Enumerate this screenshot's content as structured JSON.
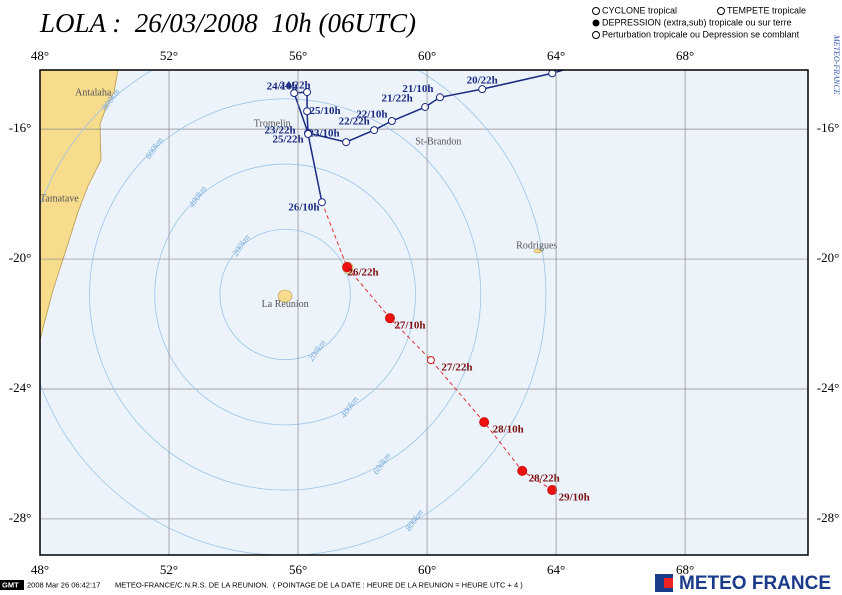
{
  "header": {
    "title": "LOLA :  26/03/2008  10h (06UTC)"
  },
  "legend": [
    "CYCLONE tropical",
    "TEMPETE tropicale",
    "DEPRESSION (extra,sub) tropicale ou sur terre",
    "Perturbation tropicale ou Depression se comblant"
  ],
  "side_text": "METEO-FRANCE",
  "map": {
    "lon_range": [
      48,
      71.81
    ],
    "lat_range": [
      -14.18,
      -29.11
    ],
    "lon_ticks": [
      {
        "value": 48,
        "label": "48°"
      },
      {
        "value": 52,
        "label": "52°"
      },
      {
        "value": 56,
        "label": "56°"
      },
      {
        "value": 60,
        "label": "60°"
      },
      {
        "value": 64,
        "label": "64°"
      },
      {
        "value": 68,
        "label": "68°"
      }
    ],
    "lat_ticks": [
      {
        "value": -16,
        "label": "-16°"
      },
      {
        "value": -20,
        "label": "-20°"
      },
      {
        "value": -24,
        "label": "-24°"
      },
      {
        "value": -28,
        "label": "-28°"
      }
    ],
    "ring_center": {
      "lon": 55.6,
      "lat": -21.09
    },
    "rings": [
      {
        "km": 200,
        "label": "200km"
      },
      {
        "km": 400,
        "label": "400km"
      },
      {
        "km": 600,
        "label": "600km"
      },
      {
        "km": 800,
        "label": "800km"
      }
    ],
    "places": [
      {
        "name": "Antalaha",
        "lon": 49.65,
        "lat": -14.9
      },
      {
        "name": "Tamatave",
        "lon": 48.6,
        "lat": -18.15
      },
      {
        "name": "Tromelin",
        "lon": 55.2,
        "lat": -15.85
      },
      {
        "name": "St-Brandon",
        "lon": 60.35,
        "lat": -16.4
      },
      {
        "name": "Rodrigues",
        "lon": 63.4,
        "lat": -19.6
      },
      {
        "name": "La Reunion",
        "lon": 55.6,
        "lat": -21.4
      }
    ],
    "track": [
      {
        "label": null,
        "lon": 64.22,
        "lat": -14.18,
        "kind": "observed",
        "symbol": "none"
      },
      {
        "label": null,
        "lon": 63.88,
        "lat": -14.28,
        "kind": "observed",
        "symbol": "open"
      },
      {
        "label": "20/22h",
        "lon": 61.71,
        "lat": -14.77,
        "kind": "observed",
        "symbol": "open"
      },
      {
        "label": "21/10h",
        "lon": 60.4,
        "lat": -15.02,
        "kind": "observed",
        "symbol": "open"
      },
      {
        "label": "21/22h",
        "lon": 59.94,
        "lat": -15.32,
        "kind": "observed",
        "symbol": "open"
      },
      {
        "label": "22/10h",
        "lon": 58.91,
        "lat": -15.75,
        "kind": "observed",
        "symbol": "open"
      },
      {
        "label": "22/22h",
        "lon": 58.36,
        "lat": -16.03,
        "kind": "observed",
        "symbol": "open"
      },
      {
        "label": "23/10h",
        "lon": 57.49,
        "lat": -16.4,
        "kind": "observed",
        "symbol": "open"
      },
      {
        "label": "23/22h",
        "lon": 56.31,
        "lat": -16.12,
        "kind": "observed",
        "symbol": "open"
      },
      {
        "label": "24/10h",
        "lon": 55.88,
        "lat": -14.89,
        "kind": "observed",
        "symbol": "open"
      },
      {
        "label": "24/22h",
        "lon": 56.28,
        "lat": -14.86,
        "kind": "observed",
        "symbol": "open"
      },
      {
        "label": "25/10h",
        "lon": 56.28,
        "lat": -15.45,
        "kind": "observed",
        "symbol": "open"
      },
      {
        "label": "25/22h",
        "lon": 56.31,
        "lat": -16.15,
        "kind": "observed",
        "symbol": "open"
      },
      {
        "label": "26/10h",
        "lon": 56.74,
        "lat": -18.25,
        "kind": "observed",
        "symbol": "open"
      },
      {
        "label": "26/22h",
        "lon": 57.52,
        "lat": -20.25,
        "kind": "forecast",
        "symbol": "filled"
      },
      {
        "label": "27/10h",
        "lon": 58.85,
        "lat": -21.82,
        "kind": "forecast",
        "symbol": "filled"
      },
      {
        "label": "27/22h",
        "lon": 60.12,
        "lat": -23.11,
        "kind": "forecast",
        "symbol": "open"
      },
      {
        "label": "28/10h",
        "lon": 61.77,
        "lat": -25.02,
        "kind": "forecast",
        "symbol": "filled"
      },
      {
        "label": "28/22h",
        "lon": 62.95,
        "lat": -26.52,
        "kind": "forecast",
        "symbol": "filled"
      },
      {
        "label": "29/10h",
        "lon": 63.88,
        "lat": -27.11,
        "kind": "forecast",
        "symbol": "filled"
      }
    ]
  },
  "footer": {
    "gmt": "GMT",
    "timestamp": "2008 Mar 26 06:42:17",
    "credit": "METEO-FRANCE/C.N.R.S. DE LA REUNION.  ( POINTAGE DE LA DATE : HEURE DE LA REUNION = HEURE UTC + 4 )",
    "logo": "METEO FRANCE"
  }
}
